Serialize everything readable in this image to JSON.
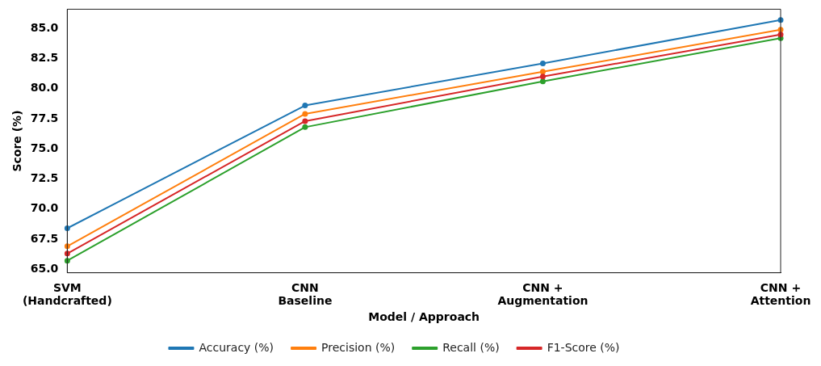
{
  "chart_data": {
    "type": "line",
    "xlabel": "Model / Approach",
    "ylabel": "Score (%)",
    "categories": [
      "SVM\n(Handcrafted)",
      "CNN\nBaseline",
      "CNN +\nAugmentation",
      "CNN +\nAttention"
    ],
    "series": [
      {
        "name": "Accuracy (%)",
        "color": "#1f77b4",
        "values": [
          68.4,
          78.6,
          82.1,
          85.7
        ]
      },
      {
        "name": "Precision (%)",
        "color": "#ff7f0e",
        "values": [
          66.9,
          77.9,
          81.4,
          84.9
        ]
      },
      {
        "name": "Recall (%)",
        "color": "#2ca02c",
        "values": [
          65.7,
          76.8,
          80.6,
          84.2
        ]
      },
      {
        "name": "F1-Score (%)",
        "color": "#d62728",
        "values": [
          66.3,
          77.3,
          81.0,
          84.5
        ]
      }
    ],
    "ylim": [
      64.7,
      86.6
    ],
    "yticks": [
      {
        "value": 65,
        "label": "65.0"
      },
      {
        "value": 67.5,
        "label": "67.5"
      },
      {
        "value": 70,
        "label": "70.0"
      },
      {
        "value": 72.5,
        "label": "72.5"
      },
      {
        "value": 75,
        "label": "75.0"
      },
      {
        "value": 77.5,
        "label": "77.5"
      },
      {
        "value": 80,
        "label": "80.0"
      },
      {
        "value": 82.5,
        "label": "82.5"
      },
      {
        "value": 85,
        "label": "85.0"
      }
    ],
    "grid": false,
    "legend": "bottom",
    "marker": "circle",
    "line_style": "solid"
  }
}
